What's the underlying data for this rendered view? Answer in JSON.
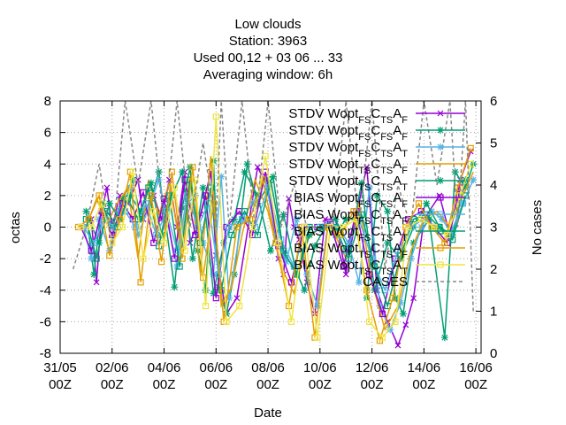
{
  "chart_data": {
    "type": "line",
    "title": [
      "Low clouds",
      "Station:      3963",
      "Used  00,12  + 03 06 ... 33",
      "Averaging window:  6h"
    ],
    "xlabel": "Date",
    "ylabel": "octas",
    "y2label": "No cases",
    "x_unit": "days since 31/05 00Z",
    "xlim": [
      0,
      16.2
    ],
    "ylim": [
      -8,
      8
    ],
    "y2lim": [
      0,
      6
    ],
    "x_ticks": [
      {
        "x": 0,
        "label": [
          "31/05",
          "00Z"
        ]
      },
      {
        "x": 2,
        "label": [
          "02/06",
          "00Z"
        ]
      },
      {
        "x": 4,
        "label": [
          "04/06",
          "00Z"
        ]
      },
      {
        "x": 6,
        "label": [
          "06/06",
          "00Z"
        ]
      },
      {
        "x": 8,
        "label": [
          "08/06",
          "00Z"
        ]
      },
      {
        "x": 10,
        "label": [
          "10/06",
          "00Z"
        ]
      },
      {
        "x": 12,
        "label": [
          "12/06",
          "00Z"
        ]
      },
      {
        "x": 14,
        "label": [
          "14/06",
          "00Z"
        ]
      },
      {
        "x": 16,
        "label": [
          "16/06",
          "00Z"
        ]
      }
    ],
    "y_ticks": [
      -8,
      -6,
      -4,
      -2,
      0,
      2,
      4,
      6,
      8
    ],
    "y2_ticks": [
      0,
      1,
      2,
      3,
      4,
      5,
      6
    ],
    "grid": true,
    "legend_position": "top-right",
    "series": [
      {
        "legend_parts": [
          [
            "STDV Wopt",
            "n"
          ],
          [
            "FS",
            "s"
          ],
          [
            "C",
            "n"
          ],
          [
            "TS",
            "s"
          ],
          [
            "A",
            "n"
          ],
          [
            "F",
            "s"
          ]
        ],
        "color": "#9400d3",
        "marker": "x",
        "axis": "y",
        "x": [
          1.2,
          1.4,
          1.6,
          1.8,
          2.0,
          2.3,
          2.6,
          3.0,
          3.2,
          3.6,
          3.9,
          4.2,
          4.5,
          4.8,
          5.0,
          5.4,
          5.8,
          6.0,
          6.4,
          6.8,
          7.6,
          8.0,
          8.4,
          8.6,
          8.8,
          9.0,
          9.2,
          9.5,
          9.8,
          10.2,
          10.6,
          11.0,
          11.4,
          11.8,
          12.2,
          12.6,
          13.0,
          13.3,
          13.6,
          14.0,
          14.6,
          15.0,
          15.4,
          15.8
        ],
        "y": [
          0.5,
          -3.5,
          1.0,
          2.5,
          0.0,
          2.0,
          1.5,
          3.0,
          0.5,
          2.0,
          0.5,
          3.0,
          0.0,
          3.5,
          -1.0,
          0.8,
          3.5,
          -1.8,
          -5.5,
          -4.5,
          3.8,
          2.5,
          -2.0,
          -3.0,
          1.8,
          0.0,
          -0.8,
          -3.5,
          -5.5,
          0.5,
          0.5,
          -3.0,
          0.8,
          3.8,
          -4.0,
          -6.0,
          -7.5,
          -6.2,
          -4.5,
          0.5,
          2.0,
          -0.5,
          3.0,
          4.8
        ]
      },
      {
        "legend_parts": [
          [
            "STDV Wopt",
            "n"
          ],
          [
            "FS",
            "s"
          ],
          [
            "C",
            "n"
          ],
          [
            "FS",
            "s"
          ],
          [
            "A",
            "n"
          ],
          [
            "F",
            "s"
          ]
        ],
        "color": "#009e73",
        "marker": "star",
        "axis": "y",
        "x": [
          1.0,
          1.3,
          1.6,
          2.0,
          2.4,
          2.8,
          3.1,
          3.5,
          3.8,
          4.0,
          4.4,
          4.7,
          5.0,
          5.3,
          5.6,
          5.9,
          6.1,
          6.4,
          6.7,
          7.2,
          7.6,
          8.2,
          8.6,
          9.0,
          9.4,
          9.8,
          10.2,
          10.6,
          11.0,
          11.4,
          11.8,
          12.2,
          12.6,
          12.9,
          13.2,
          13.6,
          14.2,
          14.8,
          15.2,
          15.6,
          15.9
        ],
        "y": [
          1.0,
          -3.0,
          1.5,
          0.0,
          1.8,
          3.0,
          0.5,
          1.8,
          3.5,
          1.0,
          -3.8,
          1.2,
          3.8,
          -1.5,
          -4.0,
          4.2,
          -3.8,
          -5.5,
          -3.0,
          4.0,
          1.5,
          3.2,
          -1.8,
          -2.5,
          -4.0,
          -1.2,
          0.0,
          -0.5,
          0.5,
          0.5,
          -4.5,
          2.0,
          1.0,
          -4.5,
          -5.5,
          -1.0,
          0.5,
          -7.0,
          3.5,
          2.5,
          4.0
        ]
      },
      {
        "legend_parts": [
          [
            "STDV Wopt",
            "n"
          ],
          [
            "FS",
            "s"
          ],
          [
            "C",
            "n"
          ],
          [
            "TS",
            "s"
          ],
          [
            "A",
            "n"
          ],
          [
            "T",
            "s"
          ]
        ],
        "color": "#56b4e9",
        "marker": "star",
        "axis": "y",
        "x": [
          0.9,
          1.2,
          1.5,
          1.9,
          2.3,
          2.7,
          3.0,
          3.4,
          3.8,
          4.1,
          4.5,
          4.9,
          5.2,
          5.5,
          5.9,
          6.2,
          6.5,
          7.0,
          7.4,
          7.9,
          8.3,
          8.7,
          9.1,
          9.5,
          9.9,
          10.3,
          10.7,
          11.1,
          11.5,
          11.9,
          12.3,
          12.7,
          13.1,
          13.5,
          13.9,
          14.3,
          14.7,
          15.1,
          15.5,
          15.9
        ],
        "y": [
          0.0,
          -2.0,
          0.5,
          -1.5,
          1.0,
          2.5,
          -0.5,
          1.2,
          3.0,
          0.5,
          -2.5,
          1.5,
          2.0,
          -1.0,
          -3.0,
          3.2,
          -4.5,
          0.5,
          1.5,
          3.0,
          -0.5,
          -2.2,
          0.5,
          -3.0,
          -5.0,
          0.2,
          0.0,
          -1.0,
          -3.5,
          2.5,
          -5.0,
          -6.5,
          -4.8,
          -2.0,
          0.0,
          1.0,
          0.5,
          -0.5,
          1.5,
          3.0
        ]
      },
      {
        "legend_parts": [
          [
            "STDV Wopt",
            "n"
          ],
          [
            "TS",
            "s"
          ],
          [
            "C",
            "n"
          ],
          [
            "TS",
            "s"
          ],
          [
            "A",
            "n"
          ],
          [
            "F",
            "s"
          ]
        ],
        "color": "#e69f00",
        "marker": "none",
        "axis": "y",
        "x": [
          1.0,
          1.4,
          1.8,
          2.2,
          2.6,
          3.0,
          3.4,
          3.8,
          4.2,
          4.6,
          5.0,
          5.4,
          5.8,
          6.2,
          6.6,
          7.0,
          7.5,
          8.0,
          8.5,
          9.0,
          9.5,
          10.0,
          10.5,
          11.0,
          11.5,
          12.0,
          12.5,
          13.0,
          13.5,
          14.0,
          14.5,
          15.0,
          15.5,
          15.9
        ],
        "y": [
          0.0,
          1.8,
          0.2,
          1.5,
          2.5,
          -2.0,
          3.0,
          0.8,
          2.8,
          -1.0,
          3.2,
          -3.0,
          4.5,
          -5.0,
          -3.8,
          -0.5,
          3.0,
          1.0,
          -2.5,
          -4.2,
          -0.8,
          0.0,
          -0.2,
          -2.0,
          1.5,
          -3.5,
          -6.5,
          -5.0,
          -1.5,
          0.5,
          1.0,
          0.0,
          2.0,
          3.5
        ]
      },
      {
        "legend_parts": [
          [
            "STDV Wopt",
            "n"
          ],
          [
            "TS",
            "s"
          ],
          [
            "C",
            "n"
          ],
          [
            "TS",
            "s"
          ],
          [
            "A",
            "n"
          ],
          [
            "T",
            "s"
          ]
        ],
        "color": "#009e73",
        "marker": "star",
        "axis": "y",
        "x": [
          1.1,
          1.5,
          1.9,
          2.3,
          2.7,
          3.1,
          3.5,
          3.9,
          4.3,
          4.7,
          5.1,
          5.5,
          5.9,
          6.3,
          6.7,
          7.1,
          7.6,
          8.1,
          8.6,
          9.1,
          9.6,
          10.1,
          10.6,
          11.1,
          11.6,
          12.1,
          12.6,
          13.1,
          13.6,
          14.1,
          14.6,
          15.1,
          15.6
        ],
        "y": [
          0.5,
          -1.0,
          1.5,
          0.5,
          2.0,
          1.0,
          2.8,
          -0.5,
          2.0,
          3.5,
          -2.0,
          2.5,
          -4.2,
          -1.0,
          0.5,
          3.5,
          2.0,
          -1.5,
          0.8,
          -3.0,
          -0.5,
          0.0,
          0.5,
          -1.5,
          2.8,
          -4.0,
          -1.0,
          -2.0,
          0.0,
          1.5,
          0.0,
          -0.5,
          3.0
        ]
      },
      {
        "legend_parts": [
          [
            "BIAS Wopt",
            "n"
          ],
          [
            "FS",
            "s"
          ],
          [
            "C",
            "n"
          ],
          [
            "FS",
            "s"
          ],
          [
            "A",
            "n"
          ],
          [
            "F",
            "s"
          ]
        ],
        "color": "#9400d3",
        "marker": "square",
        "axis": "y",
        "x": [
          0.8,
          1.2,
          1.6,
          2.0,
          2.4,
          2.8,
          3.2,
          3.6,
          4.0,
          4.4,
          4.8,
          5.2,
          5.6,
          6.0,
          6.4,
          6.9,
          7.4,
          7.9,
          8.4,
          8.9,
          9.4,
          9.9,
          10.4,
          10.9,
          11.4,
          11.9,
          12.4,
          12.9,
          13.4,
          13.9,
          14.4,
          14.9,
          15.4
        ],
        "y": [
          0.0,
          -1.5,
          1.0,
          -0.5,
          1.5,
          0.5,
          2.2,
          -1.0,
          1.8,
          -2.0,
          3.0,
          -0.5,
          2.0,
          -4.5,
          0.0,
          1.0,
          -0.5,
          3.5,
          -1.2,
          -3.5,
          0.0,
          0.0,
          0.2,
          -2.5,
          1.0,
          -3.0,
          -5.5,
          -2.0,
          0.5,
          1.0,
          0.0,
          -1.0,
          2.5
        ]
      },
      {
        "legend_parts": [
          [
            "BIAS Wopt",
            "n"
          ],
          [
            "FS",
            "s"
          ],
          [
            "C",
            "n"
          ],
          [
            "TS",
            "s"
          ],
          [
            "A",
            "n"
          ],
          [
            "F",
            "s"
          ]
        ],
        "color": "#56b4e9",
        "marker": "square",
        "axis": "y",
        "x": [
          0.9,
          1.3,
          1.7,
          2.1,
          2.5,
          2.9,
          3.3,
          3.7,
          4.1,
          4.5,
          4.9,
          5.3,
          5.7,
          6.1,
          6.5,
          7.0,
          7.5,
          8.0,
          8.5,
          9.0,
          9.5,
          10.0,
          10.5,
          11.0,
          11.5,
          12.0,
          12.5,
          13.0,
          13.5,
          14.0,
          14.5,
          15.0,
          15.5
        ],
        "y": [
          0.0,
          -1.0,
          0.5,
          0.0,
          1.0,
          0.0,
          1.5,
          -0.5,
          1.0,
          -1.5,
          2.0,
          0.0,
          1.5,
          -3.0,
          0.0,
          0.5,
          0.0,
          2.5,
          -0.8,
          -2.5,
          0.0,
          0.0,
          0.0,
          -1.5,
          0.5,
          -2.0,
          -4.0,
          -1.5,
          0.0,
          0.5,
          0.0,
          -0.5,
          1.5
        ]
      },
      {
        "legend_parts": [
          [
            "BIAS Wopt",
            "n"
          ],
          [
            "FS",
            "s"
          ],
          [
            "C",
            "n"
          ],
          [
            "TS",
            "s"
          ],
          [
            "A",
            "n"
          ],
          [
            "T",
            "s"
          ]
        ],
        "color": "#009e73",
        "marker": "square",
        "axis": "y",
        "x": [
          1.0,
          1.4,
          1.8,
          2.2,
          2.6,
          3.0,
          3.4,
          3.8,
          4.2,
          4.6,
          5.0,
          5.4,
          5.8,
          6.2,
          6.6,
          7.1,
          7.6,
          8.1,
          8.6,
          9.1,
          9.6,
          10.1,
          10.6,
          11.1,
          11.6,
          12.1,
          12.6,
          13.1,
          13.6,
          14.1,
          14.6,
          15.1,
          15.6
        ],
        "y": [
          0.5,
          -2.0,
          1.0,
          0.0,
          1.8,
          0.5,
          2.5,
          -1.2,
          2.0,
          -2.5,
          3.0,
          -1.0,
          2.5,
          -4.0,
          -0.5,
          1.0,
          -0.5,
          3.0,
          -1.5,
          -3.0,
          0.0,
          0.0,
          0.0,
          -2.0,
          0.8,
          -2.5,
          -5.0,
          -1.8,
          0.5,
          0.8,
          0.0,
          -0.8,
          2.0
        ]
      },
      {
        "legend_parts": [
          [
            "BIAS Wopt",
            "n"
          ],
          [
            "TS",
            "s"
          ],
          [
            "C",
            "n"
          ],
          [
            "TS",
            "s"
          ],
          [
            "A",
            "n"
          ],
          [
            "F",
            "s"
          ]
        ],
        "color": "#e69f00",
        "marker": "square",
        "axis": "y",
        "x": [
          0.7,
          1.1,
          1.5,
          1.9,
          2.3,
          2.7,
          3.1,
          3.5,
          3.9,
          4.3,
          4.7,
          5.1,
          5.5,
          5.9,
          6.3,
          6.8,
          7.3,
          7.8,
          8.3,
          8.8,
          9.3,
          9.8,
          10.3,
          10.8,
          11.3,
          11.8,
          12.3,
          12.8,
          13.3,
          13.8,
          14.3,
          14.8,
          15.3,
          15.8
        ],
        "y": [
          0.0,
          0.5,
          2.0,
          -1.8,
          0.5,
          3.5,
          -3.5,
          2.0,
          -2.2,
          3.5,
          -2.0,
          3.8,
          -3.2,
          1.5,
          -6.0,
          0.0,
          0.5,
          3.0,
          -1.0,
          -5.0,
          0.0,
          -7.0,
          0.0,
          -0.5,
          1.0,
          -4.0,
          -7.2,
          -4.5,
          0.0,
          1.5,
          0.0,
          -1.0,
          2.5,
          5.0
        ]
      },
      {
        "legend_parts": [
          [
            "BIAS Wopt",
            "n"
          ],
          [
            "TS",
            "s"
          ],
          [
            "C",
            "n"
          ],
          [
            "TS",
            "s"
          ],
          [
            "A",
            "n"
          ],
          [
            "T",
            "s"
          ]
        ],
        "color": "#f0e442",
        "marker": "square",
        "axis": "y",
        "x": [
          0.8,
          1.2,
          1.6,
          2.0,
          2.4,
          2.8,
          3.2,
          3.6,
          4.0,
          4.4,
          4.8,
          5.2,
          5.6,
          6.0,
          6.4,
          6.9,
          7.4,
          7.9,
          8.4,
          8.9,
          9.4,
          9.9,
          10.4,
          10.9,
          11.4,
          11.9,
          12.4,
          12.9,
          13.4,
          13.9,
          14.4,
          14.9,
          15.4,
          15.8
        ],
        "y": [
          0.0,
          0.0,
          1.5,
          -1.0,
          0.0,
          3.5,
          -2.0,
          1.0,
          -1.0,
          2.5,
          -1.5,
          3.0,
          -5.0,
          7.0,
          -6.0,
          -5.0,
          0.0,
          4.5,
          -1.0,
          -6.0,
          0.0,
          -7.0,
          0.0,
          0.0,
          0.5,
          -6.0,
          -7.0,
          -6.0,
          0.0,
          0.5,
          0.0,
          -0.5,
          2.0,
          4.0
        ]
      },
      {
        "legend_parts": [
          [
            "CASES",
            "n"
          ]
        ],
        "color": "#888888",
        "marker": "none",
        "dash": true,
        "axis": "y2",
        "x": [
          0.5,
          1.0,
          1.5,
          2.0,
          2.5,
          3.0,
          3.5,
          4.0,
          4.5,
          5.0,
          5.5,
          6.0,
          6.2,
          6.5,
          7.0,
          7.5,
          8.0,
          8.5,
          9.0,
          9.5,
          10.0,
          10.5,
          11.0,
          11.5,
          12.0,
          12.5,
          13.0,
          13.5,
          14.0,
          14.5,
          15.0,
          15.3,
          15.6,
          15.9
        ],
        "y": [
          2.0,
          3.0,
          4.5,
          2.5,
          6.0,
          4.0,
          6.0,
          3.0,
          6.0,
          3.0,
          5.0,
          3.0,
          6.0,
          3.0,
          6.0,
          3.0,
          6.0,
          3.0,
          4.0,
          3.0,
          3.0,
          3.0,
          6.0,
          3.0,
          6.0,
          2.0,
          4.0,
          3.0,
          6.0,
          4.0,
          6.0,
          3.0,
          6.0,
          1.0
        ]
      }
    ]
  }
}
